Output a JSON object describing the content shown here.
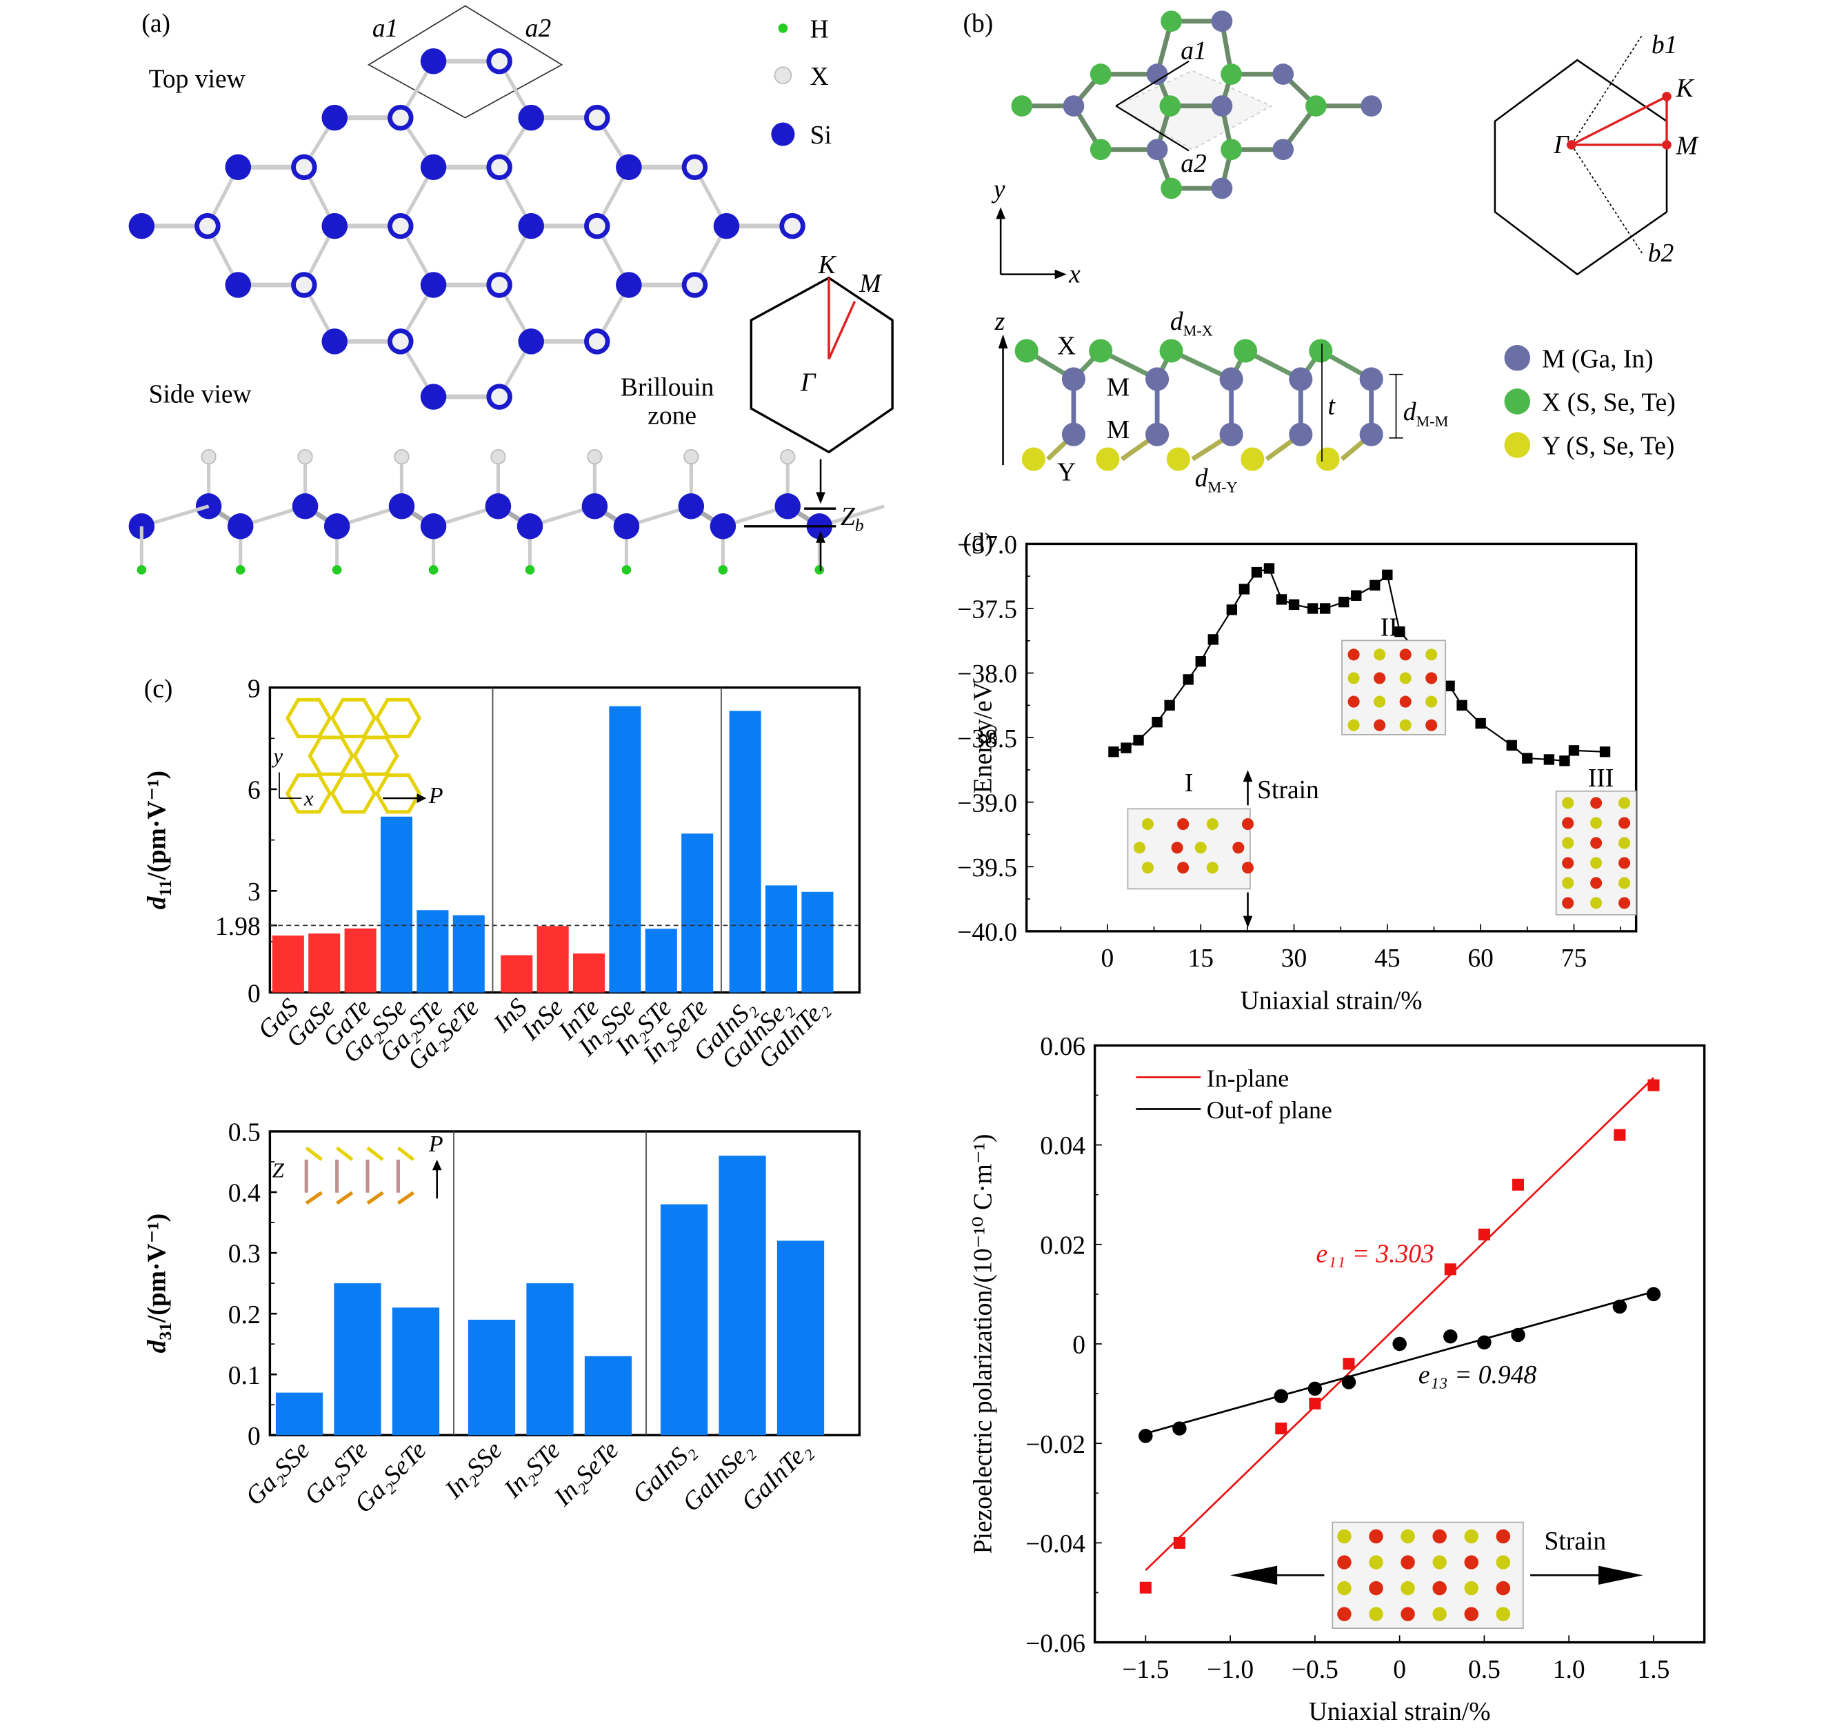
{
  "panels": {
    "a": {
      "label": "(a)",
      "top_view": "Top view",
      "side_view": "Side view",
      "lattice_vectors": [
        "a1",
        "a2"
      ],
      "brillouin_label_1": "Brillouin",
      "brillouin_label_2": "zone",
      "bz_points": [
        "K",
        "M",
        "Γ"
      ],
      "zb_label": "Z",
      "zb_sub": "b",
      "legend": [
        {
          "symbol": "H",
          "color": "#22cc22"
        },
        {
          "symbol": "X",
          "color": "#e6e6e6"
        },
        {
          "symbol": "Si",
          "color": "#1a1acc"
        }
      ]
    },
    "b": {
      "label": "(b)",
      "lattice_vectors": [
        "a1",
        "a2"
      ],
      "reciprocal_vectors": [
        "b1",
        "b2"
      ],
      "bz_points": [
        "K",
        "Γ",
        "M"
      ],
      "axes_top": [
        "y",
        "x"
      ],
      "axis_side": "z",
      "site_labels": [
        "X",
        "M",
        "M",
        "Y"
      ],
      "dims": {
        "d_mx": "M-X",
        "d_my": "M-Y",
        "d_mm": "M-M",
        "t": "t"
      },
      "legend": [
        {
          "label": "M (Ga, In)",
          "color": "#6a6fa6"
        },
        {
          "label": "X (S, Se, Te)",
          "color": "#4cb84c"
        },
        {
          "label": "Y (S, Se, Te)",
          "color": "#d8d820"
        }
      ]
    },
    "c_label": "(c)",
    "d_label": "(d)"
  },
  "chart_data": [
    {
      "id": "d11",
      "type": "bar",
      "title": "",
      "ylabel_main": "d",
      "ylabel_sub": "11",
      "ylabel_unit": "/(pm·V⁻¹)",
      "xlabel": "",
      "ylim": [
        0,
        9
      ],
      "yticks": [
        "0",
        "1.98",
        "3",
        "6",
        "9"
      ],
      "ytick_values": [
        0,
        1.98,
        3,
        6,
        9
      ],
      "reference_line": 1.98,
      "inset_labels": {
        "y": "y",
        "x": "x",
        "p": "P"
      },
      "groups": [
        {
          "categories": [
            "GaS",
            "GaSe",
            "GaTe",
            "Ga₂SSe",
            "Ga₂STe",
            "Ga₂SeTe"
          ],
          "values": [
            1.68,
            1.74,
            1.89,
            5.19,
            2.43,
            2.28
          ],
          "colors": [
            "#ff3030",
            "#ff3030",
            "#ff3030",
            "#0a7df5",
            "#0a7df5",
            "#0a7df5"
          ]
        },
        {
          "categories": [
            "InS",
            "InSe",
            "InTe",
            "In₂SSe",
            "In₂STe",
            "In₂SeTe"
          ],
          "values": [
            1.1,
            1.96,
            1.15,
            8.45,
            1.88,
            4.69
          ],
          "colors": [
            "#ff3030",
            "#ff3030",
            "#ff3030",
            "#0a7df5",
            "#0a7df5",
            "#0a7df5"
          ]
        },
        {
          "categories": [
            "GaInS₂",
            "GaInSe₂",
            "GaInTe₂"
          ],
          "values": [
            8.31,
            3.16,
            2.97
          ],
          "colors": [
            "#0a7df5",
            "#0a7df5",
            "#0a7df5"
          ]
        }
      ]
    },
    {
      "id": "d31",
      "type": "bar",
      "title": "",
      "ylabel_main": "d",
      "ylabel_sub": "31",
      "ylabel_unit": "/(pm·V⁻¹)",
      "xlabel": "",
      "ylim": [
        0,
        0.5
      ],
      "yticks": [
        "0",
        "0.1",
        "0.2",
        "0.3",
        "0.4",
        "0.5"
      ],
      "ytick_values": [
        0,
        0.1,
        0.2,
        0.3,
        0.4,
        0.5
      ],
      "inset_labels": {
        "z": "Z",
        "p": "P"
      },
      "groups": [
        {
          "categories": [
            "Ga₂SSe",
            "Ga₂STe",
            "Ga₂SeTe"
          ],
          "values": [
            0.07,
            0.25,
            0.21
          ],
          "colors": [
            "#0a7df5",
            "#0a7df5",
            "#0a7df5"
          ]
        },
        {
          "categories": [
            "In₂SSe",
            "In₂STe",
            "In₂SeTe"
          ],
          "values": [
            0.19,
            0.25,
            0.13
          ],
          "colors": [
            "#0a7df5",
            "#0a7df5",
            "#0a7df5"
          ]
        },
        {
          "categories": [
            "GaInS₂",
            "GaInSe₂",
            "GaInTe₂"
          ],
          "values": [
            0.38,
            0.46,
            0.32
          ],
          "colors": [
            "#0a7df5",
            "#0a7df5",
            "#0a7df5"
          ]
        }
      ]
    },
    {
      "id": "energy",
      "type": "line",
      "title": "",
      "xlabel": "Uniaxial strain/%",
      "ylabel": "Energy/eV",
      "xlim": [
        -13,
        85
      ],
      "ylim": [
        -40.0,
        -37.0
      ],
      "xticks": [
        0,
        15,
        30,
        45,
        60,
        75
      ],
      "yticks": [
        -40.0,
        -39.5,
        -39.0,
        -38.5,
        -38.0,
        -37.5,
        -37.0
      ],
      "ytick_labels": [
        "−40.0",
        "−39.5",
        "−39.0",
        "−38.5",
        "−38.0",
        "−37.5",
        "−37.0"
      ],
      "series": [
        {
          "name": "Energy",
          "color": "#000000",
          "marker": "square",
          "x": [
            1,
            3,
            5,
            8,
            10,
            13,
            15,
            17,
            20,
            22,
            24,
            26,
            28,
            30,
            33,
            35,
            38,
            40,
            43,
            45,
            47,
            50,
            53,
            55,
            57,
            60,
            65,
            67.5,
            71,
            73.5,
            75,
            80
          ],
          "y": [
            -38.61,
            -38.58,
            -38.52,
            -38.38,
            -38.25,
            -38.05,
            -37.91,
            -37.74,
            -37.51,
            -37.35,
            -37.22,
            -37.19,
            -37.43,
            -37.47,
            -37.5,
            -37.5,
            -37.45,
            -37.4,
            -37.32,
            -37.24,
            -37.68,
            -37.84,
            -38.0,
            -38.1,
            -38.25,
            -38.39,
            -38.56,
            -38.66,
            -38.67,
            -38.68,
            -38.6,
            -38.61
          ]
        }
      ],
      "annotations": [
        "I",
        "II",
        "III",
        "Strain"
      ]
    },
    {
      "id": "polarization",
      "type": "scatter",
      "title": "",
      "xlabel": "Uniaxial strain/%",
      "ylabel": "Piezoelectric polarization/(10⁻¹⁰ C·m⁻¹)",
      "xlim": [
        -1.8,
        1.8
      ],
      "ylim": [
        -0.06,
        0.06
      ],
      "xticks": [
        -1.5,
        -1.0,
        -0.5,
        0,
        0.5,
        1.0,
        1.5
      ],
      "xtick_labels": [
        "−1.5",
        "−1.0",
        "−0.5",
        "0",
        "0.5",
        "1.0",
        "1.5"
      ],
      "yticks": [
        -0.06,
        -0.04,
        -0.02,
        0,
        0.02,
        0.04,
        0.06
      ],
      "ytick_labels": [
        "−0.06",
        "−0.04",
        "−0.02",
        "0",
        "0.02",
        "0.04",
        "0.06"
      ],
      "legend_position": "top-left",
      "series": [
        {
          "name": "In-plane",
          "color": "#ee1111",
          "marker": "square",
          "x": [
            -1.5,
            -1.3,
            -0.7,
            -0.5,
            -0.3,
            0.3,
            0.5,
            0.7,
            1.3,
            1.5
          ],
          "y": [
            -0.049,
            -0.04,
            -0.017,
            -0.012,
            -0.004,
            0.015,
            0.022,
            0.032,
            0.042,
            0.052
          ],
          "fit": {
            "x": [
              -1.5,
              1.5
            ],
            "y": [
              -0.0455,
              0.0535
            ]
          },
          "annotation": "e₁₁ = 3.303"
        },
        {
          "name": "Out-of plane",
          "color": "#000000",
          "marker": "circle",
          "x": [
            -1.5,
            -1.3,
            -0.7,
            -0.5,
            -0.3,
            0,
            0.3,
            0.5,
            0.7,
            1.3,
            1.5
          ],
          "y": [
            -0.0185,
            -0.017,
            -0.0105,
            -0.009,
            -0.0077,
            0.0,
            0.0015,
            0.0003,
            0.0018,
            0.0075,
            0.01
          ],
          "fit": {
            "x": [
              -1.5,
              1.5
            ],
            "y": [
              -0.018,
              0.0105
            ]
          },
          "annotation": "e₁₃ = 0.948"
        }
      ],
      "inset_label": "Strain"
    }
  ]
}
